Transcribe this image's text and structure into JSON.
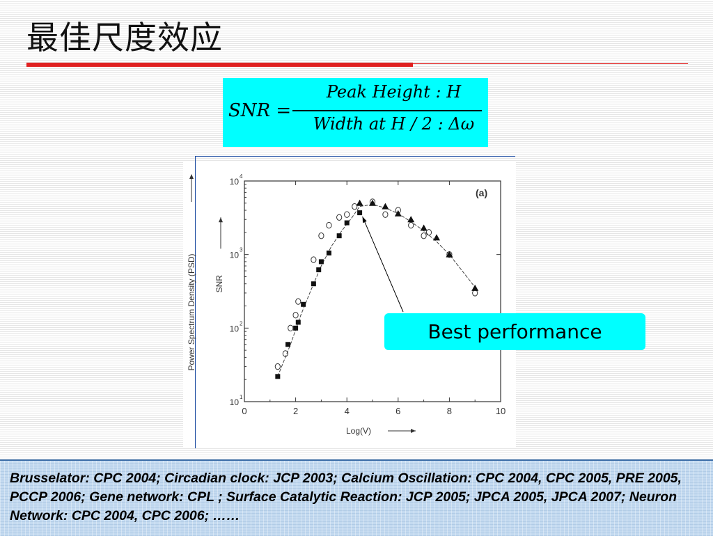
{
  "slide": {
    "title": "最佳尺度效应",
    "formula": {
      "lhs": "SNR =",
      "numerator": "Peak  Height :  H",
      "denominator": "Width  at   H / 2 : Δω"
    },
    "callout": "Best performance",
    "references": "Brusselator: CPC 2004; Circadian clock: JCP 2003; Calcium Oscillation: CPC 2004, CPC 2005, PRE 2005, PCCP 2006; Gene network: CPL ; Surface Catalytic Reaction: JCP 2005; JPCA 2005, JPCA 2007; Neuron Network: CPC 2004, CPC 2006;  ……",
    "colors": {
      "title_rule": "#e02020",
      "formula_bg": "#00ffff",
      "callout_bg": "#00ffff",
      "refs_bg": "#c4daf0"
    }
  },
  "chart_data": {
    "type": "scatter",
    "panel_label": "(a)",
    "xlabel": "Log(V)",
    "ylabel_outer": "Power Spectrum Density (PSD)",
    "ylabel_inner": "SNR",
    "yscale": "log",
    "xlim": [
      0,
      10
    ],
    "ylim_log10": [
      1,
      4
    ],
    "x_ticks": [
      "0",
      "2",
      "4",
      "6",
      "8",
      "10"
    ],
    "y_ticks": [
      {
        "base": "10",
        "exp": "1"
      },
      {
        "base": "10",
        "exp": "2"
      },
      {
        "base": "10",
        "exp": "3"
      },
      {
        "base": "10",
        "exp": "4"
      }
    ],
    "series": [
      {
        "marker": "square",
        "x": [
          1.3,
          1.7,
          2.0,
          2.1,
          2.3,
          2.7,
          2.9,
          3.0,
          3.3,
          3.7,
          4.0,
          4.5
        ],
        "y": [
          22,
          60,
          100,
          120,
          210,
          400,
          620,
          800,
          1050,
          1800,
          2700,
          3700
        ]
      },
      {
        "marker": "circle",
        "x": [
          1.3,
          1.6,
          1.8,
          2.0,
          2.1,
          2.7,
          3.0,
          3.3,
          3.7,
          4.0,
          4.3,
          5.0,
          5.5,
          6.0,
          6.5,
          7.0,
          7.2,
          8.0,
          9.0
        ],
        "y": [
          30,
          45,
          100,
          150,
          230,
          850,
          1800,
          2500,
          3200,
          3500,
          4500,
          5200,
          3500,
          4000,
          2500,
          1800,
          2000,
          1000,
          300
        ]
      },
      {
        "marker": "triangle",
        "x": [
          4.5,
          5.0,
          5.5,
          6.0,
          6.5,
          7.0,
          7.5,
          8.0,
          9.0
        ],
        "y": [
          5000,
          5000,
          4500,
          3600,
          3000,
          2300,
          1700,
          1000,
          350
        ]
      }
    ],
    "fit_curve": {
      "x": [
        1.3,
        1.8,
        2.2,
        2.6,
        3.0,
        3.4,
        3.8,
        4.2,
        4.5,
        5.0,
        5.5,
        6.0,
        6.5,
        7.0,
        7.5,
        8.0,
        8.5,
        9.0
      ],
      "y": [
        22,
        60,
        150,
        330,
        700,
        1300,
        2100,
        3200,
        4500,
        4800,
        4300,
        3600,
        2800,
        2100,
        1500,
        1000,
        600,
        360
      ]
    },
    "annotation": {
      "text": "Best performance",
      "x": 4.5,
      "y": 3900
    }
  }
}
